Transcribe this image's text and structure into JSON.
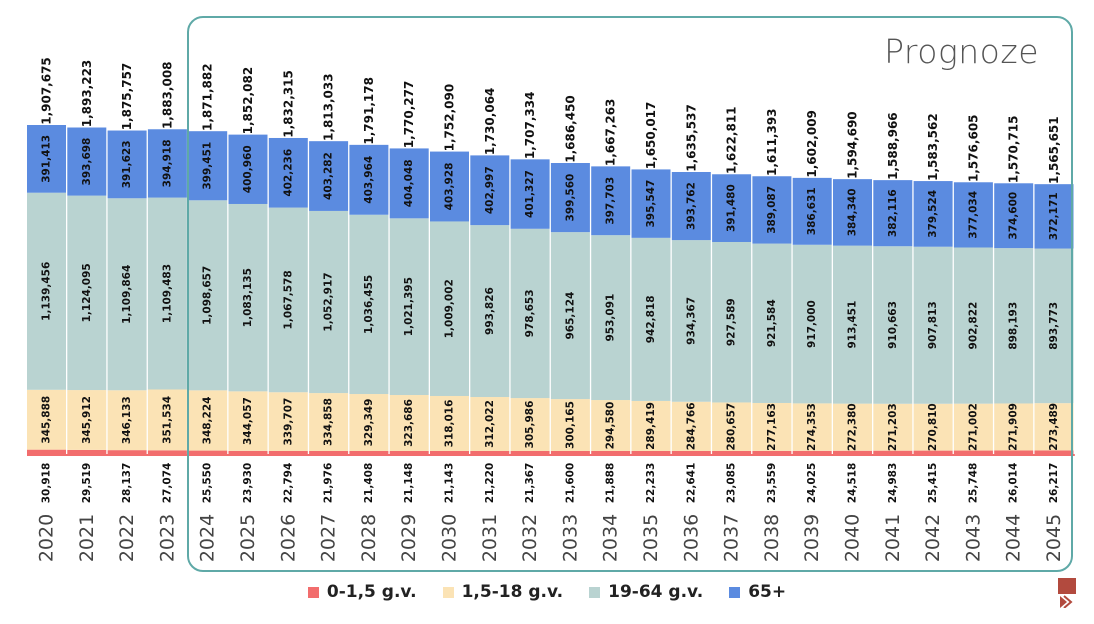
{
  "forecast_label": "Prognoze",
  "chart_data": {
    "type": "bar",
    "stacked": true,
    "categories": [
      "2020",
      "2021",
      "2022",
      "2023",
      "2024",
      "2025",
      "2026",
      "2027",
      "2028",
      "2029",
      "2030",
      "2031",
      "2032",
      "2033",
      "2034",
      "2035",
      "2036",
      "2037",
      "2038",
      "2039",
      "2040",
      "2041",
      "2042",
      "2043",
      "2044",
      "2045"
    ],
    "series": [
      {
        "name": "0-1,5 g.v.",
        "color": "#f26d6d",
        "values": [
          30918,
          29519,
          28137,
          27074,
          25550,
          23930,
          22794,
          21976,
          21408,
          21148,
          21143,
          21220,
          21367,
          21600,
          21888,
          22233,
          22641,
          23085,
          23559,
          24025,
          24518,
          24983,
          25415,
          25748,
          26014,
          26217
        ]
      },
      {
        "name": "1,5-18 g.v.",
        "color": "#fbe3b5",
        "values": [
          345888,
          345912,
          346133,
          351534,
          348224,
          344057,
          339707,
          334858,
          329349,
          323686,
          318016,
          312022,
          305986,
          300165,
          294580,
          289419,
          284766,
          280657,
          277163,
          274353,
          272380,
          271203,
          270810,
          271002,
          271909,
          273489
        ]
      },
      {
        "name": "19-64 g.v.",
        "color": "#b9d3d1",
        "values": [
          1139456,
          1124095,
          1109864,
          1109483,
          1098657,
          1083135,
          1067578,
          1052917,
          1036455,
          1021395,
          1009002,
          993826,
          978653,
          965124,
          953091,
          942818,
          934367,
          927589,
          921584,
          917000,
          913451,
          910663,
          907813,
          902822,
          898193,
          893773
        ]
      },
      {
        "name": "65+",
        "color": "#5b8be0",
        "values": [
          391413,
          393698,
          391623,
          394918,
          399451,
          400960,
          402236,
          403282,
          403964,
          404048,
          403928,
          402997,
          401327,
          399560,
          397703,
          395547,
          393762,
          391480,
          389087,
          386631,
          384340,
          382116,
          379524,
          377034,
          374600,
          372171
        ]
      }
    ],
    "totals": [
      1907675,
      1893223,
      1875757,
      1883008,
      1871882,
      1852082,
      1832315,
      1813033,
      1791178,
      1770277,
      1752090,
      1730064,
      1707334,
      1686450,
      1667263,
      1650017,
      1635537,
      1622811,
      1611393,
      1602009,
      1594690,
      1588966,
      1583562,
      1576605,
      1570715,
      1565651
    ],
    "forecast_start": "2024",
    "legend_position": "bottom",
    "grid": false
  }
}
